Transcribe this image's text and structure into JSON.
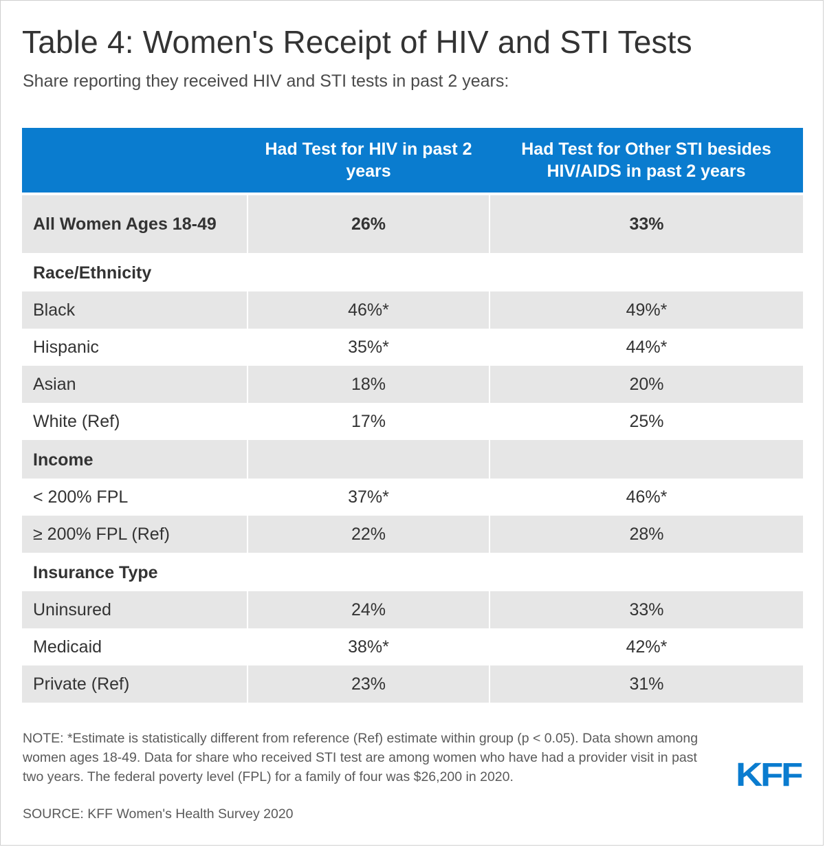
{
  "chart_data": {
    "type": "table",
    "title": "Table 4: Women's Receipt of HIV and STI Tests",
    "subtitle": "Share reporting they received HIV and STI tests in past 2 years:",
    "columns": [
      "",
      "Had Test for HIV in past 2 years",
      "Had Test for Other STI besides HIV/AIDS in past 2 years"
    ],
    "rows": [
      {
        "label": "All Women Ages 18-49",
        "hiv": "26%",
        "sti": "33%",
        "kind": "total"
      },
      {
        "label": "Race/Ethnicity",
        "hiv": "",
        "sti": "",
        "kind": "group"
      },
      {
        "label": "Black",
        "hiv": "46%*",
        "sti": "49%*",
        "kind": "data"
      },
      {
        "label": "Hispanic",
        "hiv": "35%*",
        "sti": "44%*",
        "kind": "data"
      },
      {
        "label": "Asian",
        "hiv": "18%",
        "sti": "20%",
        "kind": "data"
      },
      {
        "label": "White (Ref)",
        "hiv": "17%",
        "sti": "25%",
        "kind": "data"
      },
      {
        "label": "Income",
        "hiv": "",
        "sti": "",
        "kind": "group"
      },
      {
        "label": "< 200% FPL",
        "hiv": "37%*",
        "sti": "46%*",
        "kind": "data"
      },
      {
        "label": "≥ 200% FPL (Ref)",
        "hiv": "22%",
        "sti": "28%",
        "kind": "data"
      },
      {
        "label": "Insurance Type",
        "hiv": "",
        "sti": "",
        "kind": "group"
      },
      {
        "label": "Uninsured",
        "hiv": "24%",
        "sti": "33%",
        "kind": "data"
      },
      {
        "label": "Medicaid",
        "hiv": "38%*",
        "sti": "42%*",
        "kind": "data"
      },
      {
        "label": "Private (Ref)",
        "hiv": "23%",
        "sti": "31%",
        "kind": "data"
      }
    ]
  },
  "footer": {
    "note": "NOTE: *Estimate is statistically different from reference (Ref) estimate within group (p < 0.05). Data shown among women ages 18-49. Data for share who received STI test are among women who have had a provider visit in past two years. The federal poverty level (FPL) for a family of four was $26,200 in 2020.",
    "source": "SOURCE: KFF Women's Health Survey 2020",
    "logo_text": "KFF"
  },
  "colors": {
    "header_bg": "#0a7ccf",
    "shade": "#e6e6e6",
    "logo": "#0a7ccf",
    "text": "#333333"
  }
}
